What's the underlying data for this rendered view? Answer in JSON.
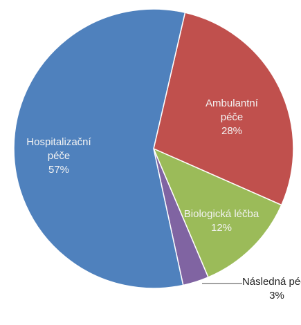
{
  "chart_data": {
    "type": "pie",
    "categories": [
      "Ambulantní péče",
      "Biologická léčba",
      "Následná péče",
      "Hospitalizační péče"
    ],
    "values": [
      28,
      12,
      3,
      57
    ],
    "value_labels": [
      "28%",
      "12%",
      "3%",
      "57%"
    ],
    "colors": [
      "#c0504d",
      "#9bbb59",
      "#8064a2",
      "#4f81bd"
    ]
  }
}
